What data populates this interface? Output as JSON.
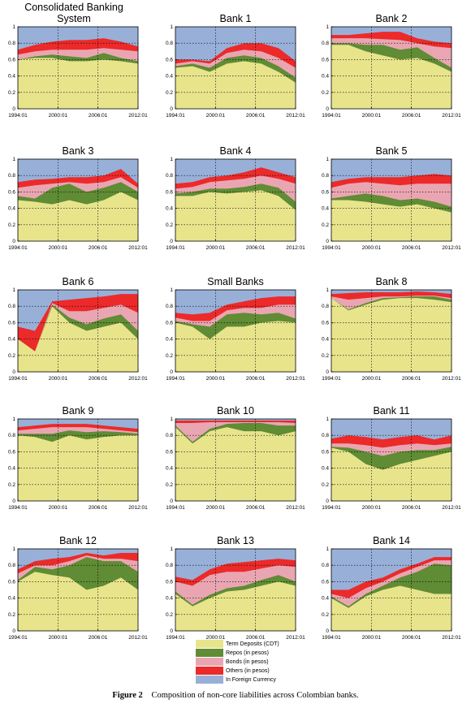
{
  "colors": {
    "term_deposits": "#e8e48c",
    "repos": "#5f8c34",
    "bonds": "#e9a6b2",
    "others": "#ec2a2a",
    "foreign_currency": "#98b0d8"
  },
  "legend": {
    "items": [
      {
        "label": "Term Deposits (CDT)",
        "color": "#e8e48c"
      },
      {
        "label": "Repos (in pesos)",
        "color": "#5f8c34"
      },
      {
        "label": "Bonds (in pesos)",
        "color": "#e9a6b2"
      },
      {
        "label": "Others (in pesos)",
        "color": "#ec2a2a"
      },
      {
        "label": "In Foreign Currency",
        "color": "#98b0d8"
      }
    ]
  },
  "caption": {
    "label": "Figure 2",
    "text": "Composition of non-core liabilities across Colombian banks."
  },
  "chart_data": [
    {
      "type": "area",
      "title": "Consolidated Banking System",
      "x_ticks": [
        "1994:01",
        "2000:01",
        "2006:01",
        "2012:01"
      ],
      "ylim": [
        0,
        1
      ],
      "y_ticks": [
        "0",
        "0.2",
        "0.4",
        "0.6",
        "0.8",
        "1"
      ],
      "grid": true,
      "cumulative_boundaries": {
        "term_deposits": [
          0.6,
          0.62,
          0.62,
          0.58,
          0.58,
          0.6,
          0.58,
          0.55
        ],
        "repos": [
          0.6,
          0.64,
          0.66,
          0.64,
          0.62,
          0.68,
          0.62,
          0.58
        ],
        "bonds": [
          0.66,
          0.7,
          0.72,
          0.72,
          0.72,
          0.74,
          0.72,
          0.7
        ],
        "others": [
          0.72,
          0.78,
          0.82,
          0.84,
          0.84,
          0.86,
          0.82,
          0.76
        ]
      }
    },
    {
      "type": "area",
      "title": "Bank 1",
      "x_ticks": [
        "1994:01",
        "2000:01",
        "2006:01",
        "2012:01"
      ],
      "ylim": [
        0,
        1
      ],
      "y_ticks": [
        "0",
        "0.2",
        "0.4",
        "0.6",
        "0.8",
        "1"
      ],
      "grid": true,
      "cumulative_boundaries": {
        "term_deposits": [
          0.5,
          0.52,
          0.45,
          0.55,
          0.58,
          0.55,
          0.45,
          0.32
        ],
        "repos": [
          0.52,
          0.55,
          0.5,
          0.62,
          0.65,
          0.62,
          0.52,
          0.38
        ],
        "bonds": [
          0.55,
          0.58,
          0.55,
          0.68,
          0.72,
          0.7,
          0.62,
          0.5
        ],
        "others": [
          0.6,
          0.6,
          0.58,
          0.74,
          0.8,
          0.8,
          0.74,
          0.58
        ]
      }
    },
    {
      "type": "area",
      "title": "Bank 2",
      "x_ticks": [
        "1994:01",
        "2000:01",
        "2006:01",
        "2012:01"
      ],
      "ylim": [
        0,
        1
      ],
      "y_ticks": [
        "0",
        "0.2",
        "0.4",
        "0.6",
        "0.8",
        "1"
      ],
      "grid": true,
      "cumulative_boundaries": {
        "term_deposits": [
          0.78,
          0.78,
          0.7,
          0.65,
          0.6,
          0.62,
          0.55,
          0.45
        ],
        "repos": [
          0.8,
          0.8,
          0.78,
          0.78,
          0.72,
          0.75,
          0.62,
          0.5
        ],
        "bonds": [
          0.86,
          0.86,
          0.86,
          0.85,
          0.84,
          0.8,
          0.76,
          0.74
        ],
        "others": [
          0.9,
          0.9,
          0.92,
          0.94,
          0.94,
          0.86,
          0.82,
          0.8
        ]
      }
    },
    {
      "type": "area",
      "title": "Bank 3",
      "x_ticks": [
        "1994:01",
        "2000:01",
        "2006:01",
        "2012:01"
      ],
      "ylim": [
        0,
        1
      ],
      "y_ticks": [
        "0",
        "0.2",
        "0.4",
        "0.6",
        "0.8",
        "1"
      ],
      "grid": true,
      "cumulative_boundaries": {
        "term_deposits": [
          0.5,
          0.48,
          0.45,
          0.5,
          0.45,
          0.5,
          0.6,
          0.5
        ],
        "repos": [
          0.55,
          0.52,
          0.65,
          0.7,
          0.6,
          0.65,
          0.72,
          0.6
        ],
        "bonds": [
          0.65,
          0.68,
          0.7,
          0.72,
          0.7,
          0.72,
          0.78,
          0.65
        ],
        "others": [
          0.72,
          0.75,
          0.76,
          0.78,
          0.78,
          0.8,
          0.88,
          0.7
        ]
      }
    },
    {
      "type": "area",
      "title": "Bank 4",
      "x_ticks": [
        "1994:01",
        "2000:01",
        "2006:01",
        "2012:01"
      ],
      "ylim": [
        0,
        1
      ],
      "y_ticks": [
        "0",
        "0.2",
        "0.4",
        "0.6",
        "0.8",
        "1"
      ],
      "grid": true,
      "cumulative_boundaries": {
        "term_deposits": [
          0.55,
          0.55,
          0.6,
          0.58,
          0.6,
          0.62,
          0.55,
          0.38
        ],
        "repos": [
          0.58,
          0.6,
          0.64,
          0.64,
          0.66,
          0.7,
          0.65,
          0.48
        ],
        "bonds": [
          0.64,
          0.66,
          0.72,
          0.74,
          0.76,
          0.8,
          0.76,
          0.7
        ],
        "others": [
          0.7,
          0.72,
          0.78,
          0.8,
          0.84,
          0.9,
          0.84,
          0.78
        ]
      }
    },
    {
      "type": "area",
      "title": "Bank 5",
      "x_ticks": [
        "1994:01",
        "2000:01",
        "2006:01",
        "2012:01"
      ],
      "ylim": [
        0,
        1
      ],
      "y_ticks": [
        "0",
        "0.2",
        "0.4",
        "0.6",
        "0.8",
        "1"
      ],
      "grid": true,
      "cumulative_boundaries": {
        "term_deposits": [
          0.5,
          0.5,
          0.48,
          0.45,
          0.42,
          0.45,
          0.4,
          0.35
        ],
        "repos": [
          0.52,
          0.55,
          0.58,
          0.55,
          0.5,
          0.52,
          0.48,
          0.42
        ],
        "bonds": [
          0.65,
          0.7,
          0.72,
          0.7,
          0.68,
          0.7,
          0.7,
          0.7
        ],
        "others": [
          0.72,
          0.76,
          0.78,
          0.78,
          0.78,
          0.8,
          0.82,
          0.8
        ]
      }
    },
    {
      "type": "area",
      "title": "Bank 6",
      "x_ticks": [
        "1994:01",
        "2000:01",
        "2006:01",
        "2012:01"
      ],
      "ylim": [
        0,
        1
      ],
      "y_ticks": [
        "0",
        "0.2",
        "0.4",
        "0.6",
        "0.8",
        "1"
      ],
      "grid": true,
      "cumulative_boundaries": {
        "term_deposits": [
          0.4,
          0.25,
          0.8,
          0.6,
          0.5,
          0.55,
          0.6,
          0.4
        ],
        "repos": [
          0.4,
          0.25,
          0.82,
          0.66,
          0.58,
          0.65,
          0.7,
          0.5
        ],
        "bonds": [
          0.4,
          0.25,
          0.84,
          0.74,
          0.74,
          0.78,
          0.82,
          0.72
        ],
        "others": [
          0.55,
          0.5,
          0.86,
          0.88,
          0.9,
          0.92,
          0.95,
          0.95
        ]
      }
    },
    {
      "type": "area",
      "title": "Small Banks",
      "x_ticks": [
        "1994:01",
        "2000:01",
        "2006:01",
        "2012:01"
      ],
      "ylim": [
        0,
        1
      ],
      "y_ticks": [
        "0",
        "0.2",
        "0.4",
        "0.6",
        "0.8",
        "1"
      ],
      "grid": true,
      "cumulative_boundaries": {
        "term_deposits": [
          0.6,
          0.55,
          0.4,
          0.55,
          0.55,
          0.6,
          0.62,
          0.6
        ],
        "repos": [
          0.62,
          0.58,
          0.55,
          0.7,
          0.72,
          0.7,
          0.72,
          0.65
        ],
        "bonds": [
          0.66,
          0.62,
          0.62,
          0.75,
          0.78,
          0.78,
          0.82,
          0.82
        ],
        "others": [
          0.72,
          0.7,
          0.72,
          0.82,
          0.86,
          0.9,
          0.92,
          0.92
        ]
      }
    },
    {
      "type": "area",
      "title": "Bank 8",
      "x_ticks": [
        "1994:01",
        "2000:01",
        "2006:01",
        "2012:01"
      ],
      "ylim": [
        0,
        1
      ],
      "y_ticks": [
        "0",
        "0.2",
        "0.4",
        "0.6",
        "0.8",
        "1"
      ],
      "grid": true,
      "cumulative_boundaries": {
        "term_deposits": [
          0.9,
          0.75,
          0.82,
          0.88,
          0.9,
          0.9,
          0.88,
          0.85
        ],
        "repos": [
          0.9,
          0.76,
          0.84,
          0.9,
          0.91,
          0.92,
          0.92,
          0.88
        ],
        "bonds": [
          0.92,
          0.88,
          0.9,
          0.92,
          0.92,
          0.93,
          0.93,
          0.9
        ],
        "others": [
          0.95,
          0.96,
          0.97,
          0.97,
          0.97,
          0.98,
          0.97,
          0.95
        ]
      }
    },
    {
      "type": "area",
      "title": "Bank 9",
      "x_ticks": [
        "1994:01",
        "2000:01",
        "2006:01",
        "2012:01"
      ],
      "ylim": [
        0,
        1
      ],
      "y_ticks": [
        "0",
        "0.2",
        "0.4",
        "0.6",
        "0.8",
        "1"
      ],
      "grid": true,
      "cumulative_boundaries": {
        "term_deposits": [
          0.8,
          0.78,
          0.72,
          0.8,
          0.75,
          0.78,
          0.8,
          0.8
        ],
        "repos": [
          0.82,
          0.82,
          0.82,
          0.86,
          0.84,
          0.85,
          0.84,
          0.82
        ],
        "bonds": [
          0.86,
          0.88,
          0.9,
          0.9,
          0.9,
          0.88,
          0.86,
          0.84
        ],
        "others": [
          0.9,
          0.92,
          0.94,
          0.94,
          0.94,
          0.92,
          0.9,
          0.88
        ]
      }
    },
    {
      "type": "area",
      "title": "Bank 10",
      "x_ticks": [
        "1994:01",
        "2000:01",
        "2006:01",
        "2012:01"
      ],
      "ylim": [
        0,
        1
      ],
      "y_ticks": [
        "0",
        "0.2",
        "0.4",
        "0.6",
        "0.8",
        "1"
      ],
      "grid": true,
      "cumulative_boundaries": {
        "term_deposits": [
          0.9,
          0.7,
          0.85,
          0.9,
          0.85,
          0.85,
          0.8,
          0.85
        ],
        "repos": [
          0.92,
          0.72,
          0.88,
          0.94,
          0.95,
          0.95,
          0.92,
          0.92
        ],
        "bonds": [
          0.95,
          0.95,
          0.96,
          0.96,
          0.96,
          0.96,
          0.96,
          0.95
        ],
        "others": [
          0.98,
          0.98,
          0.98,
          0.98,
          0.98,
          0.98,
          0.98,
          0.98
        ]
      }
    },
    {
      "type": "area",
      "title": "Bank 11",
      "x_ticks": [
        "1994:01",
        "2000:01",
        "2006:01",
        "2012:01"
      ],
      "ylim": [
        0,
        1
      ],
      "y_ticks": [
        "0",
        "0.2",
        "0.4",
        "0.6",
        "0.8",
        "1"
      ],
      "grid": true,
      "cumulative_boundaries": {
        "term_deposits": [
          0.65,
          0.6,
          0.45,
          0.38,
          0.45,
          0.5,
          0.55,
          0.6
        ],
        "repos": [
          0.66,
          0.65,
          0.6,
          0.55,
          0.6,
          0.62,
          0.62,
          0.66
        ],
        "bonds": [
          0.7,
          0.7,
          0.68,
          0.65,
          0.68,
          0.7,
          0.68,
          0.7
        ],
        "others": [
          0.76,
          0.8,
          0.78,
          0.75,
          0.78,
          0.8,
          0.75,
          0.8
        ]
      }
    },
    {
      "type": "area",
      "title": "Bank 12",
      "x_ticks": [
        "1994:01",
        "2000:01",
        "2006:01",
        "2012:01"
      ],
      "ylim": [
        0,
        1
      ],
      "y_ticks": [
        "0",
        "0.2",
        "0.4",
        "0.6",
        "0.8",
        "1"
      ],
      "grid": true,
      "cumulative_boundaries": {
        "term_deposits": [
          0.6,
          0.72,
          0.68,
          0.65,
          0.5,
          0.55,
          0.65,
          0.5
        ],
        "repos": [
          0.62,
          0.78,
          0.75,
          0.8,
          0.9,
          0.85,
          0.85,
          0.72
        ],
        "bonds": [
          0.7,
          0.8,
          0.8,
          0.85,
          0.92,
          0.88,
          0.88,
          0.85
        ],
        "others": [
          0.75,
          0.85,
          0.88,
          0.9,
          0.95,
          0.92,
          0.95,
          0.95
        ]
      }
    },
    {
      "type": "area",
      "title": "Bank 13",
      "x_ticks": [
        "1994:01",
        "2000:01",
        "2006:01",
        "2012:01"
      ],
      "ylim": [
        0,
        1
      ],
      "y_ticks": [
        "0",
        "0.2",
        "0.4",
        "0.6",
        "0.8",
        "1"
      ],
      "grid": true,
      "cumulative_boundaries": {
        "term_deposits": [
          0.45,
          0.3,
          0.4,
          0.48,
          0.5,
          0.55,
          0.6,
          0.55
        ],
        "repos": [
          0.48,
          0.32,
          0.44,
          0.52,
          0.55,
          0.62,
          0.68,
          0.6
        ],
        "bonds": [
          0.6,
          0.55,
          0.68,
          0.72,
          0.72,
          0.76,
          0.8,
          0.78
        ],
        "others": [
          0.66,
          0.62,
          0.75,
          0.82,
          0.84,
          0.86,
          0.88,
          0.86
        ]
      }
    },
    {
      "type": "area",
      "title": "Bank 14",
      "x_ticks": [
        "1994:01",
        "2000:01",
        "2006:01",
        "2012:01"
      ],
      "ylim": [
        0,
        1
      ],
      "y_ticks": [
        "0",
        "0.2",
        "0.4",
        "0.6",
        "0.8",
        "1"
      ],
      "grid": true,
      "cumulative_boundaries": {
        "term_deposits": [
          0.4,
          0.28,
          0.42,
          0.5,
          0.55,
          0.5,
          0.45,
          0.45
        ],
        "repos": [
          0.42,
          0.3,
          0.45,
          0.55,
          0.65,
          0.72,
          0.82,
          0.8
        ],
        "bonds": [
          0.45,
          0.4,
          0.52,
          0.6,
          0.7,
          0.78,
          0.86,
          0.86
        ],
        "others": [
          0.5,
          0.5,
          0.6,
          0.65,
          0.75,
          0.82,
          0.9,
          0.9
        ]
      }
    }
  ]
}
